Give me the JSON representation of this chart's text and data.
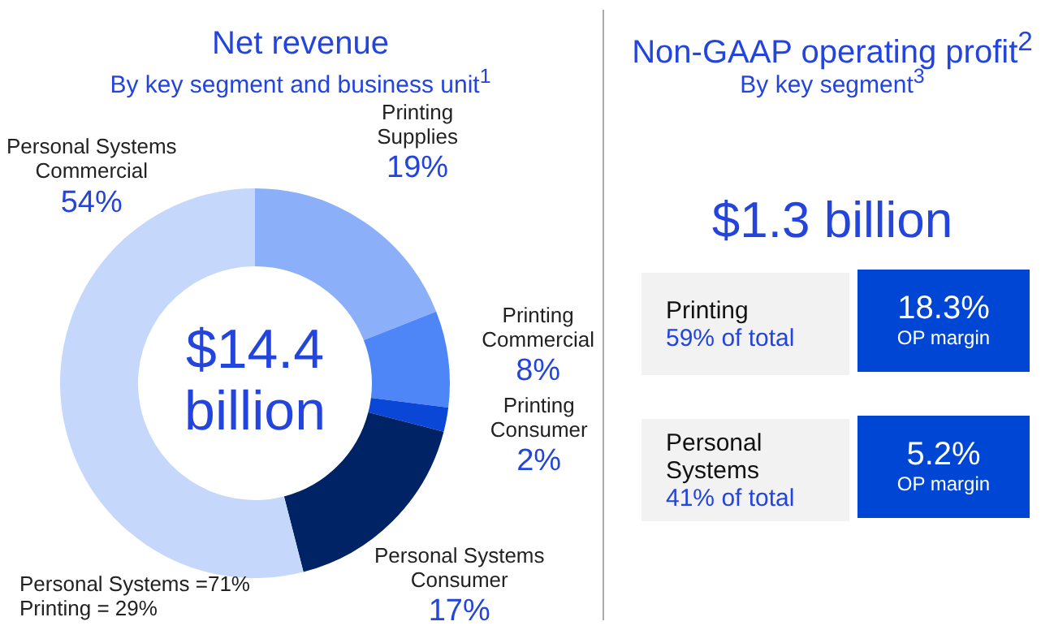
{
  "chart_data": [
    {
      "type": "donut",
      "title": "Net revenue",
      "subtitle": "By key segment and business unit$^{1}$",
      "categories": [
        "Printing Supplies",
        "Printing Commercial",
        "Printing Consumer",
        "Personal Systems Consumer",
        "Personal Systems Commercial"
      ],
      "values": [
        19,
        8,
        2,
        17,
        54
      ],
      "colors": [
        "#8caffa",
        "#4f86f7",
        "#0a47d6",
        "#002366",
        "#c5d8fc"
      ],
      "value_labels": [
        "19%",
        "8%",
        "2%",
        "17%",
        "54%"
      ],
      "annotations": [
        "$14.4 billion",
        "Personal Systems =71%\nPrinting = 29%"
      ]
    },
    {
      "type": "other",
      "title": "Non-GAAP operating profit$^{2}$",
      "subtitle": "By key segment$^{3}$",
      "annotations": [
        "$1.3 billion",
        "Printing",
        "59% of total",
        "18.3%",
        "OP margin",
        "Personal Systems",
        "41% of total",
        "5.2%",
        "OP margin"
      ]
    }
  ]
}
